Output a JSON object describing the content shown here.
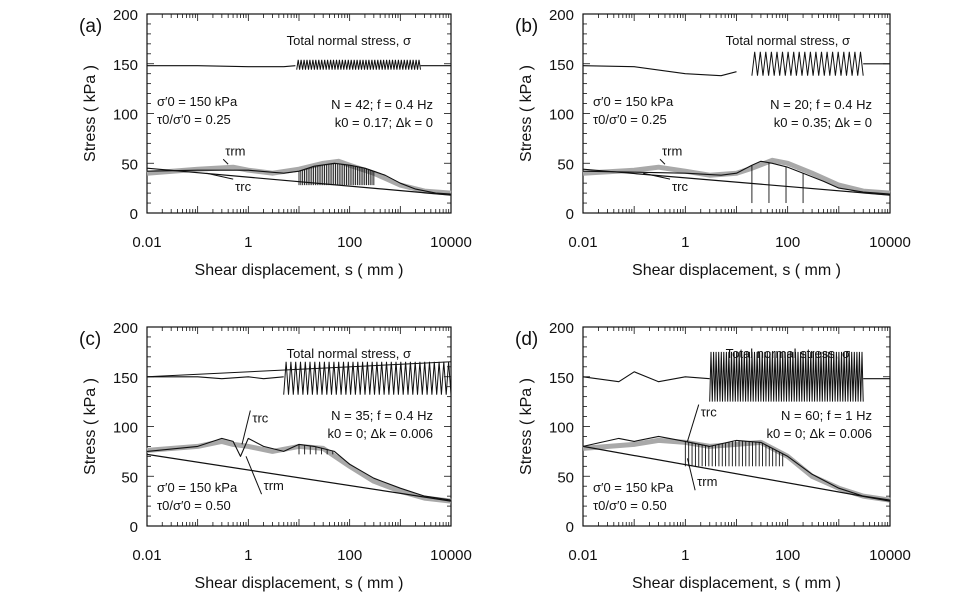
{
  "chart_data": [
    {
      "panel_label": "(a)",
      "type": "line",
      "xscale": "log",
      "xlim": [
        0.01,
        10000
      ],
      "ylim": [
        0,
        200
      ],
      "xticks": [
        "0.01",
        "1",
        "100",
        "10000"
      ],
      "yticks": [
        "0",
        "50",
        "100",
        "150",
        "200"
      ],
      "xlabel": "Shear displacement, s ( mm )",
      "ylabel": "Stress ( kPa )",
      "annotations": {
        "normal_stress_label": "Total normal stress, σ",
        "initial_conditions": [
          "σ′0 = 150 kPa",
          "τ0/σ′0 = 0.25"
        ],
        "test_parameters": [
          "N = 42; f = 0.4 Hz",
          "k0 = 0.17; Δk = 0"
        ],
        "tau_m_label": "τrm",
        "tau_c_label": "τrc"
      },
      "series": [
        {
          "role": "normal_stress",
          "x": [
            0.01,
            0.1,
            1,
            5,
            8.5
          ],
          "y": [
            148,
            148,
            147,
            147,
            148
          ],
          "cycles": {
            "start": 9,
            "end": 2500,
            "count": 42,
            "min": 144,
            "max": 154
          },
          "x_after": [
            2500,
            10000
          ],
          "y_after": [
            148,
            148
          ]
        },
        {
          "role": "tau_r_m",
          "x": [
            0.01,
            0.1,
            0.5,
            1,
            3,
            10,
            30,
            60,
            100,
            300,
            1000,
            3000,
            10000
          ],
          "y": [
            40,
            44,
            46,
            43,
            40,
            44,
            50,
            52,
            48,
            40,
            28,
            22,
            20
          ]
        },
        {
          "role": "tau_r_c",
          "x": [
            0.01,
            0.1,
            1,
            5,
            10,
            20,
            50,
            100,
            200,
            500,
            1000,
            2000,
            5000,
            10000
          ],
          "y": [
            42,
            43,
            43,
            40,
            42,
            47,
            50,
            48,
            45,
            38,
            30,
            24,
            20,
            19
          ],
          "drops": {
            "start": 10,
            "end": 300,
            "count": 42,
            "min": 28
          }
        },
        {
          "role": "trend_line",
          "x": [
            0.01,
            10000
          ],
          "y": [
            45,
            18
          ]
        }
      ]
    },
    {
      "panel_label": "(b)",
      "type": "line",
      "xscale": "log",
      "xlim": [
        0.01,
        10000
      ],
      "ylim": [
        0,
        200
      ],
      "xticks": [
        "0.01",
        "1",
        "100",
        "10000"
      ],
      "yticks": [
        "0",
        "50",
        "100",
        "150",
        "200"
      ],
      "xlabel": "Shear displacement, s ( mm )",
      "ylabel": "Stress ( kPa )",
      "annotations": {
        "normal_stress_label": "Total normal stress, σ",
        "initial_conditions": [
          "σ′0 = 150 kPa",
          "τ0/σ′0 = 0.25"
        ],
        "test_parameters": [
          "N = 20; f = 0.4 Hz",
          "k0 = 0.35; Δk = 0"
        ],
        "tau_m_label": "τrm",
        "tau_c_label": "τrc"
      },
      "series": [
        {
          "role": "normal_stress",
          "x": [
            0.01,
            0.1,
            1,
            5,
            10
          ],
          "y": [
            148,
            147,
            140,
            138,
            142
          ],
          "cycles": {
            "start": 20,
            "end": 3000,
            "count": 20,
            "min": 138,
            "max": 162
          },
          "x_after": [
            3000,
            10000
          ],
          "y_after": [
            150,
            150
          ]
        },
        {
          "role": "tau_r_m",
          "x": [
            0.01,
            0.1,
            0.3,
            1,
            3,
            10,
            20,
            50,
            100,
            300,
            1000,
            3000,
            10000
          ],
          "y": [
            40,
            43,
            46,
            42,
            38,
            40,
            45,
            53,
            50,
            40,
            28,
            22,
            20
          ]
        },
        {
          "role": "tau_r_c",
          "x": [
            0.01,
            0.1,
            1,
            5,
            10,
            20,
            30,
            50,
            100,
            200,
            500,
            1000,
            3000,
            10000
          ],
          "y": [
            42,
            41,
            40,
            38,
            40,
            48,
            52,
            50,
            46,
            40,
            32,
            25,
            21,
            19
          ],
          "drops": {
            "start": 20,
            "end": 200,
            "count": 4,
            "min": 10
          }
        },
        {
          "role": "trend_line",
          "x": [
            0.01,
            10000
          ],
          "y": [
            44,
            18
          ]
        }
      ]
    },
    {
      "panel_label": "(c)",
      "type": "line",
      "xscale": "log",
      "xlim": [
        0.01,
        10000
      ],
      "ylim": [
        0,
        200
      ],
      "xticks": [
        "0.01",
        "1",
        "100",
        "10000"
      ],
      "yticks": [
        "0",
        "50",
        "100",
        "150",
        "200"
      ],
      "xlabel": "Shear displacement, s ( mm )",
      "ylabel": "Stress ( kPa )",
      "annotations": {
        "normal_stress_label": "Total normal stress, σ",
        "initial_conditions": [
          "σ′0 = 150 kPa",
          "τ0/σ′0 = 0.50"
        ],
        "test_parameters": [
          "N = 35; f = 0.4 Hz",
          "k0 = 0; Δk = 0.006"
        ],
        "tau_m_label": "τrm",
        "tau_c_label": "τrc"
      },
      "series": [
        {
          "role": "normal_stress",
          "x": [
            0.01,
            0.1,
            0.3,
            1,
            2,
            5
          ],
          "y": [
            150,
            150,
            148,
            150,
            148,
            150
          ],
          "cycles": {
            "start": 5,
            "end": 10000,
            "count": 35,
            "min": 132,
            "max": 165
          },
          "x_after": [
            10000,
            10000
          ],
          "y_after": [
            150,
            150
          ]
        },
        {
          "role": "normal_stress_upper_envelope",
          "x": [
            0.01,
            10000
          ],
          "y": [
            150,
            165
          ]
        },
        {
          "role": "tau_r_m",
          "x": [
            0.01,
            0.1,
            0.3,
            0.5,
            1,
            3,
            10,
            30,
            100,
            300,
            1000,
            3000,
            10000
          ],
          "y": [
            76,
            80,
            85,
            82,
            80,
            75,
            80,
            78,
            60,
            45,
            35,
            28,
            25
          ]
        },
        {
          "role": "tau_r_c",
          "x": [
            0.01,
            0.1,
            0.3,
            0.5,
            0.7,
            1,
            2,
            5,
            10,
            20,
            50,
            100,
            300,
            1000,
            3000,
            10000
          ],
          "y": [
            75,
            80,
            88,
            85,
            70,
            88,
            80,
            75,
            82,
            80,
            75,
            62,
            48,
            38,
            30,
            26
          ],
          "drops": {
            "start": 10,
            "end": 60,
            "count": 8,
            "min": 72
          }
        },
        {
          "role": "trend_line",
          "x": [
            0.01,
            10000
          ],
          "y": [
            72,
            25
          ]
        }
      ]
    },
    {
      "panel_label": "(d)",
      "type": "line",
      "xscale": "log",
      "xlim": [
        0.01,
        10000
      ],
      "ylim": [
        0,
        200
      ],
      "xticks": [
        "0.01",
        "1",
        "100",
        "10000"
      ],
      "yticks": [
        "0",
        "50",
        "100",
        "150",
        "200"
      ],
      "xlabel": "Shear displacement, s ( mm )",
      "ylabel": "Stress ( kPa )",
      "annotations": {
        "normal_stress_label": "Total normal stress, σ",
        "initial_conditions": [
          "σ′0 = 150 kPa",
          "τ0/σ′0 = 0.50"
        ],
        "test_parameters": [
          "N = 60; f = 1 Hz",
          "k0 = 0; Δk = 0.006"
        ],
        "tau_m_label": "τrm",
        "tau_c_label": "τrc"
      },
      "series": [
        {
          "role": "normal_stress",
          "x": [
            0.01,
            0.05,
            0.1,
            0.3,
            1,
            3
          ],
          "y": [
            150,
            145,
            155,
            145,
            150,
            148
          ],
          "cycles": {
            "start": 3,
            "end": 3000,
            "count": 60,
            "min": 125,
            "max": 175
          },
          "x_after": [
            3000,
            10000
          ],
          "y_after": [
            148,
            148
          ]
        },
        {
          "role": "tau_r_m",
          "x": [
            0.01,
            0.1,
            0.3,
            1,
            3,
            10,
            30,
            100,
            300,
            1000,
            3000,
            10000
          ],
          "y": [
            78,
            82,
            86,
            84,
            80,
            82,
            84,
            70,
            50,
            38,
            30,
            26
          ]
        },
        {
          "role": "tau_r_c",
          "x": [
            0.01,
            0.05,
            0.1,
            0.3,
            1,
            3,
            10,
            30,
            100,
            300,
            1000,
            3000,
            10000
          ],
          "y": [
            80,
            88,
            85,
            90,
            85,
            80,
            86,
            84,
            70,
            52,
            38,
            30,
            26
          ],
          "drops": {
            "start": 1,
            "end": 80,
            "count": 30,
            "min": 60
          }
        },
        {
          "role": "trend_line",
          "x": [
            0.01,
            10000
          ],
          "y": [
            80,
            25
          ]
        }
      ]
    }
  ]
}
